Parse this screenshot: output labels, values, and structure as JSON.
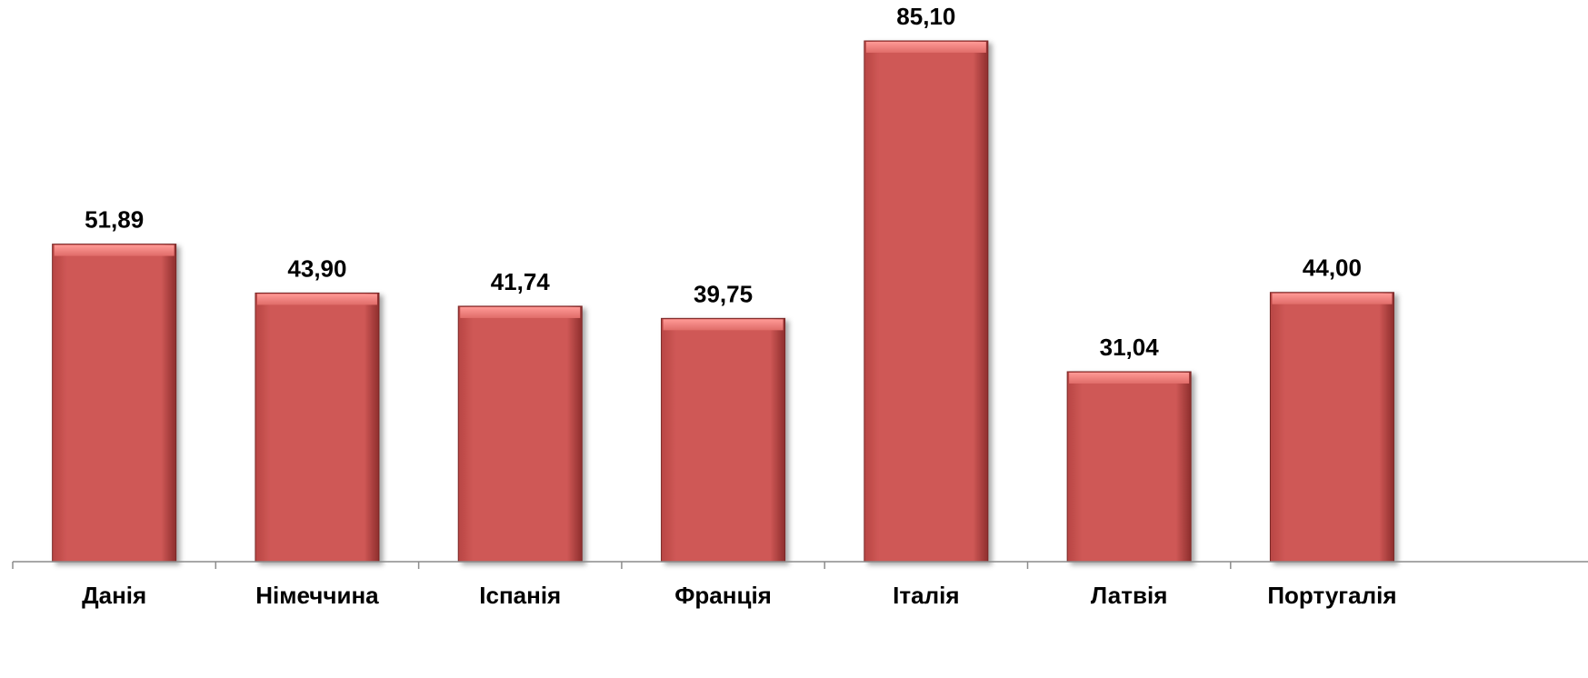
{
  "chart_data": {
    "type": "bar",
    "title": "",
    "xlabel": "",
    "ylabel": "",
    "categories": [
      "Данія",
      "Німеччина",
      "Іспанія",
      "Франція",
      "Італія",
      "Латвія",
      "Португалія"
    ],
    "values": [
      51.89,
      43.9,
      41.74,
      39.75,
      85.1,
      31.04,
      44.0
    ],
    "value_labels": [
      "51,89",
      "43,90",
      "41,74",
      "39,75",
      "85,10",
      "31,04",
      "44,00"
    ],
    "ylim": [
      0,
      90
    ],
    "grid": false,
    "legend": "none",
    "bar_color": "#d05a58"
  }
}
